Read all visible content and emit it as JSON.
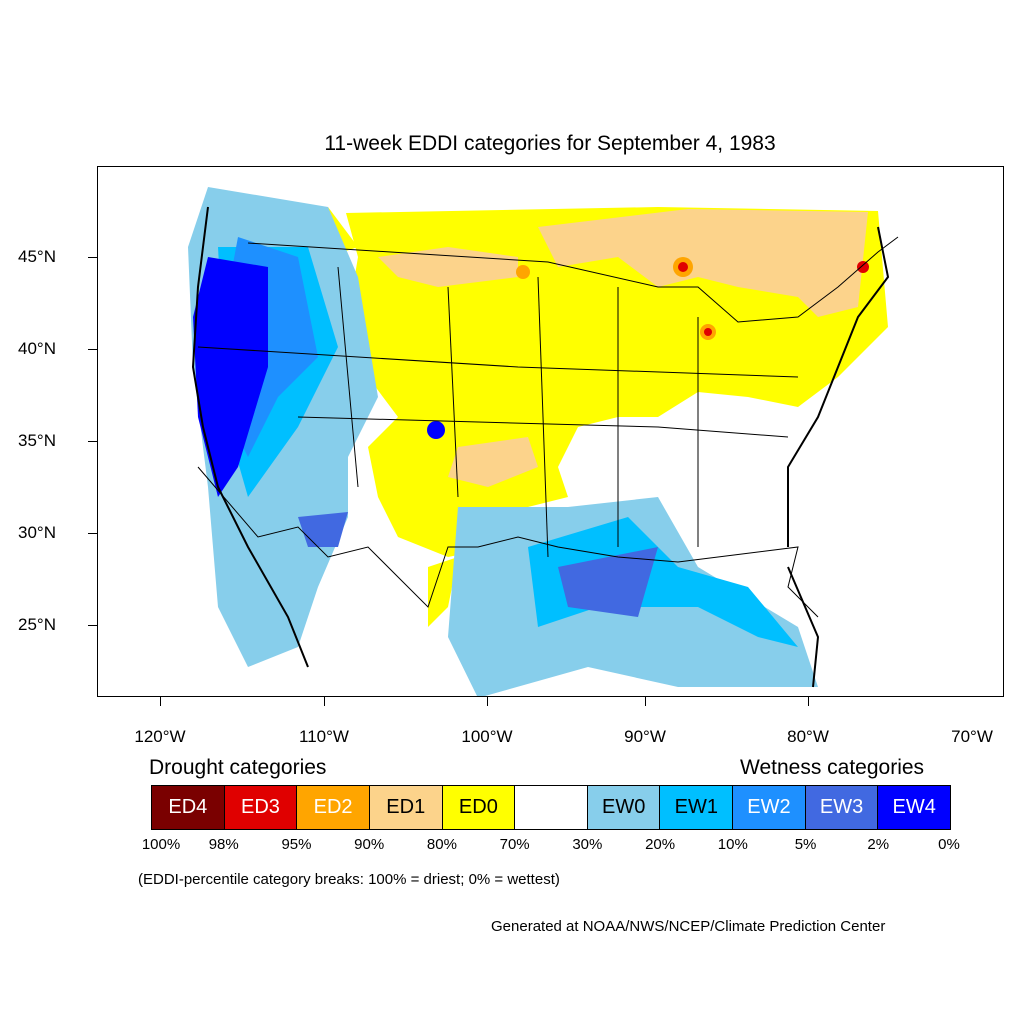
{
  "title": "11-week EDDI categories for September 4, 1983",
  "y_axis": {
    "labels": [
      "45°N",
      "40°N",
      "35°N",
      "30°N",
      "25°N"
    ]
  },
  "x_axis": {
    "labels": [
      "120°W",
      "110°W",
      "100°W",
      "90°W",
      "80°W",
      "70°W"
    ]
  },
  "legend": {
    "drought_heading": "Drought categories",
    "wetness_heading": "Wetness categories",
    "categories": [
      {
        "label": "ED4",
        "color": "#7a0000",
        "text_color": "#ffffff"
      },
      {
        "label": "ED3",
        "color": "#e00000",
        "text_color": "#ffffff"
      },
      {
        "label": "ED2",
        "color": "#ffa500",
        "text_color": "#ffffff"
      },
      {
        "label": "ED1",
        "color": "#fcd38b",
        "text_color": "#000000"
      },
      {
        "label": "ED0",
        "color": "#ffff00",
        "text_color": "#000000"
      },
      {
        "label": "",
        "color": "#ffffff",
        "text_color": "#000000"
      },
      {
        "label": "EW0",
        "color": "#87ceeb",
        "text_color": "#000000"
      },
      {
        "label": "EW1",
        "color": "#00bfff",
        "text_color": "#000000"
      },
      {
        "label": "EW2",
        "color": "#1e90ff",
        "text_color": "#ffffff"
      },
      {
        "label": "EW3",
        "color": "#4169e1",
        "text_color": "#ffffff"
      },
      {
        "label": "EW4",
        "color": "#0000ff",
        "text_color": "#ffffff"
      }
    ],
    "percentiles": [
      "100%",
      "98%",
      "95%",
      "90%",
      "80%",
      "70%",
      "30%",
      "20%",
      "10%",
      "5%",
      "2%",
      "0%"
    ]
  },
  "note": "(EDDI-percentile category breaks: 100% = driest; 0% = wettest)",
  "credit": "Generated at NOAA/NWS/NCEP/Climate Prediction Center"
}
